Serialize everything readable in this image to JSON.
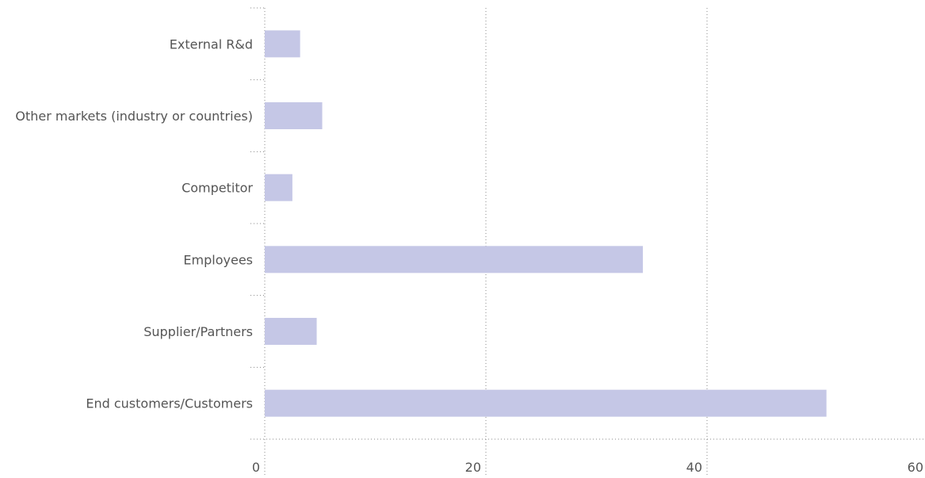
{
  "chart_data": {
    "type": "bar",
    "orientation": "horizontal",
    "categories": [
      "External R&d",
      "Other markets (industry or countries)",
      "Competitor",
      "Employees",
      "Supplier/Partners",
      "End customers/Customers"
    ],
    "values": [
      3.2,
      5.2,
      2.5,
      34.2,
      4.7,
      50.8
    ],
    "xlim": [
      0,
      60
    ],
    "xticks": [
      0,
      20,
      40,
      60
    ],
    "title": "",
    "xlabel": "",
    "ylabel": "",
    "grid": true,
    "legend": "none",
    "bar_color": "#c5c7e6",
    "grid_color": "#888888",
    "tick_label_color": "#555555"
  }
}
